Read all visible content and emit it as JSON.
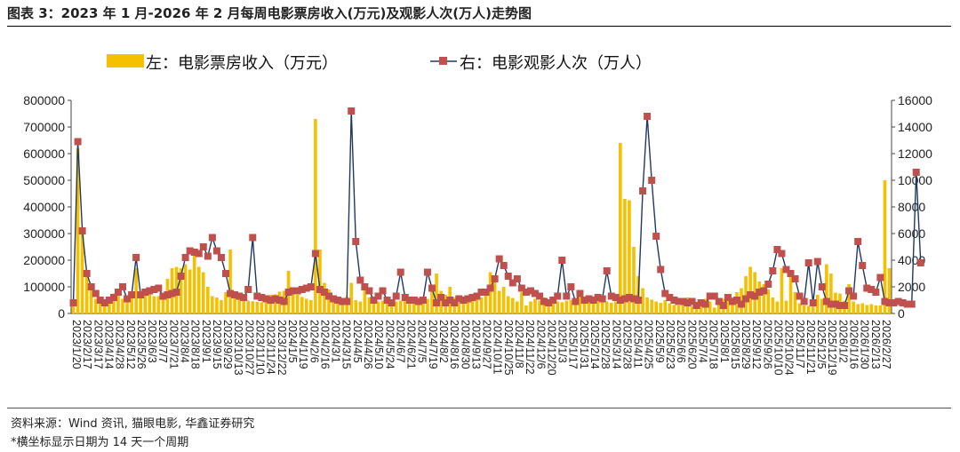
{
  "figure": {
    "title": "图表 3：2023 年 1 月-2026 年 2 月每周电影票房收入(万元)及观影人次(万人)走势图",
    "source": "资料来源：Wind 资讯, 猫眼电影, 华鑫证券研究",
    "note": "*横坐标显示日期为 14 天一个周期"
  },
  "colors": {
    "bar": "#F5C000",
    "line": "#1F3864",
    "marker": "#C0504D"
  },
  "chart_data": {
    "type": "bar",
    "combo": "bar + line (secondary axis)",
    "legend": {
      "bar_label": "左：电影票房收入（万元）",
      "line_label": "右：电影观影人次（万人）",
      "placement": "top"
    },
    "y_left": {
      "lim": [
        0,
        800000
      ],
      "ticks": [
        "0",
        "100000",
        "200000",
        "300000",
        "400000",
        "500000",
        "600000",
        "700000",
        "800000"
      ]
    },
    "y_right": {
      "lim": [
        0,
        16000
      ],
      "ticks": [
        "0",
        "2000",
        "4000",
        "6000",
        "8000",
        "10000",
        "12000",
        "14000",
        "16000"
      ]
    },
    "x_tick_labels": [
      "2023/1/20",
      "2023/2/17",
      "2023/3/17",
      "2023/4/14",
      "2023/4/28",
      "2023/5/12",
      "2023/5/26",
      "2023/6/3",
      "2023/7/7",
      "2023/7/21",
      "2023/8/4",
      "2023/8/18",
      "2023/9/1",
      "2023/9/15",
      "2023/9/29",
      "2023/10/13",
      "2023/10/27",
      "2023/11/10",
      "2023/11/24",
      "2023/12/22",
      "2024/1/5",
      "2024/1/19",
      "2024/2/6",
      "2024/2/16",
      "2024/3/1",
      "2024/3/15",
      "2024/4/5",
      "2024/4/26",
      "2024/5/10",
      "2024/5/24",
      "2024/6/7",
      "2024/6/21",
      "2024/7/5",
      "2024/7/19",
      "2024/8/2",
      "2024/8/16",
      "2024/8/30",
      "2024/9/13",
      "2024/9/27",
      "2024/10/11",
      "2024/10/25",
      "2024/11/8",
      "2024/11/22",
      "2024/12/6",
      "2024/12/20",
      "2025/1/3",
      "2025/1/17",
      "2025/1/31",
      "2025/2/14",
      "2025/2/28",
      "2025/3/14",
      "2025/3/28",
      "2025/4/11",
      "2025/4/25",
      "2025/5/9",
      "2025/5/23",
      "2025/6/6",
      "2025/6/20",
      "2025/7/4",
      "2025/7/18",
      "2025/8/1",
      "2025/8/15",
      "2025/8/29",
      "2025/9/12",
      "2025/9/26",
      "2025/10/10",
      "2025/10/24",
      "2025/11/7",
      "2025/11/21",
      "2025/12/5",
      "2025/12/19",
      "2026/1/2",
      "2026/1/16",
      "2026/1/30",
      "2026/2/13",
      "2026/2/27"
    ],
    "series": [
      {
        "name": "左：电影票房收入（万元）",
        "axis": "left",
        "values": [
          40000,
          620000,
          300000,
          145000,
          90000,
          55000,
          45000,
          45000,
          55000,
          75000,
          90000,
          55000,
          68000,
          70000,
          170000,
          75000,
          85000,
          90000,
          65000,
          65000,
          70000,
          130000,
          170000,
          175000,
          170000,
          185000,
          165000,
          230000,
          175000,
          155000,
          100000,
          65000,
          60000,
          50000,
          80000,
          240000,
          60000,
          55000,
          52000,
          48000,
          46000,
          44000,
          42000,
          68000,
          70000,
          72000,
          82000,
          85000,
          160000,
          80000,
          70000,
          62000,
          55000,
          50000,
          730000,
          240000,
          115000,
          90000,
          65000,
          55000,
          45000,
          62000,
          115000,
          50000,
          45000,
          110000,
          60000,
          52000,
          45000,
          48000,
          58000,
          50000,
          45000,
          48000,
          46000,
          42000,
          40000,
          38000,
          48000,
          55000,
          105000,
          150000,
          85000,
          70000,
          100000,
          60000,
          40000,
          42000,
          50000,
          48000,
          55000,
          60000,
          75000,
          155000,
          120000,
          85000,
          100000,
          65000,
          58000,
          45000,
          80000,
          30000,
          45000,
          55000,
          48000,
          60000,
          45000,
          55000,
          45000,
          42000,
          48000,
          50000,
          45000,
          85000,
          48000,
          55000,
          45000,
          48000,
          58000,
          45000,
          40000,
          45000,
          640000,
          430000,
          425000,
          250000,
          140000,
          95000,
          60000,
          52000,
          45000,
          40000,
          50000,
          38000,
          32000,
          30000,
          42000,
          60000,
          28000,
          30000,
          35000,
          55000,
          45000,
          22000,
          40000,
          55000,
          65000,
          60000,
          80000,
          95000,
          140000,
          175000,
          155000,
          120000,
          110000,
          90000,
          60000,
          45000,
          170000,
          48000,
          160000,
          80000,
          38000,
          30000,
          28000,
          30000,
          70000,
          55000,
          185000,
          150000,
          78000,
          75000,
          48000,
          110000,
          45000,
          35000,
          38000,
          32000,
          35000,
          30000,
          30000,
          500000,
          170000
        ]
      },
      {
        "name": "右：电影观影人次（万人）",
        "axis": "right",
        "values": [
          800,
          12900,
          6200,
          3000,
          2000,
          1500,
          1000,
          800,
          1000,
          1200,
          1600,
          2000,
          1100,
          1400,
          4200,
          1400,
          1600,
          1700,
          1800,
          1900,
          1300,
          1400,
          1500,
          1600,
          2800,
          4200,
          4700,
          4600,
          4500,
          5000,
          4300,
          5700,
          4700,
          4200,
          3000,
          1500,
          1400,
          1300,
          1200,
          1800,
          5700,
          1300,
          1200,
          1100,
          1000,
          1100,
          1000,
          900,
          1600,
          1700,
          1700,
          1800,
          1900,
          2000,
          4500,
          1800,
          1600,
          1300,
          1100,
          1000,
          900,
          900,
          15200,
          5400,
          2500,
          2000,
          1700,
          1000,
          1300,
          1700,
          1000,
          800,
          1300,
          3100,
          1200,
          1000,
          1000,
          900,
          1000,
          3100,
          1900,
          800,
          1200,
          800,
          1000,
          800,
          1100,
          1000,
          1100,
          1200,
          1300,
          1600,
          1600,
          1900,
          2600,
          4100,
          3600,
          2800,
          2300,
          2600,
          1900,
          1600,
          1700,
          1500,
          1300,
          900,
          800,
          1000,
          1300,
          4000,
          1300,
          2000,
          900,
          1500,
          1000,
          1100,
          1000,
          1200,
          1100,
          3200,
          1300,
          1200,
          1000,
          1100,
          1200,
          1100,
          1000,
          9200,
          14800,
          10000,
          5800,
          3300,
          1500,
          1200,
          1000,
          900,
          900,
          800,
          900,
          600,
          800,
          700,
          1300,
          1300,
          900,
          600,
          1200,
          900,
          1000,
          700,
          1100,
          1400,
          1300,
          1600,
          1700,
          2200,
          3200,
          4800,
          4500,
          3300,
          3000,
          2600,
          1300,
          900,
          3800,
          800,
          3900,
          2000,
          900,
          700,
          700,
          600,
          600,
          1700,
          1300,
          5400,
          3600,
          1900,
          1800,
          1600,
          2700,
          900,
          800,
          800,
          900,
          800,
          700,
          700,
          10600,
          3800
        ]
      }
    ]
  }
}
